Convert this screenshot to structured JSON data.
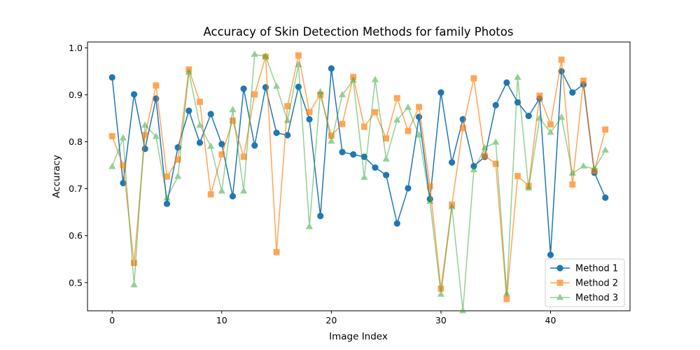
{
  "chart_data": {
    "type": "line",
    "title": "Accuracy of Skin Detection Methods for family Photos",
    "xlabel": "Image Index",
    "ylabel": "Accuracy",
    "xlim": [
      -2.25,
      47.25
    ],
    "ylim": [
      0.44,
      1.0125
    ],
    "xticks": [
      0,
      10,
      20,
      30,
      40
    ],
    "yticks": [
      0.5,
      0.6,
      0.7,
      0.8,
      0.9,
      1.0
    ],
    "ytick_labels": [
      "0.5",
      "0.6",
      "0.7",
      "0.8",
      "0.9",
      "1.0"
    ],
    "grid": false,
    "legend_position": "lower-right",
    "x": [
      0,
      1,
      2,
      3,
      4,
      5,
      6,
      7,
      8,
      9,
      10,
      11,
      12,
      13,
      14,
      15,
      16,
      17,
      18,
      19,
      20,
      21,
      22,
      23,
      24,
      25,
      26,
      27,
      28,
      29,
      30,
      31,
      32,
      33,
      34,
      35,
      36,
      37,
      38,
      39,
      40,
      41,
      42,
      43,
      44,
      45
    ],
    "series": [
      {
        "name": "Method 1",
        "color": "#1f77b4",
        "marker": "circle",
        "opacity": 1.0,
        "values": [
          0.937,
          0.712,
          0.901,
          0.785,
          0.892,
          0.668,
          0.788,
          0.866,
          0.798,
          0.859,
          0.795,
          0.684,
          0.913,
          0.792,
          0.916,
          0.819,
          0.814,
          0.917,
          0.848,
          0.642,
          0.956,
          0.778,
          0.773,
          0.768,
          0.745,
          0.729,
          0.626,
          0.701,
          0.853,
          0.678,
          0.905,
          0.756,
          0.848,
          0.748,
          0.768,
          0.878,
          0.926,
          0.884,
          0.855,
          0.892,
          0.559,
          0.95,
          0.905,
          0.922,
          0.734,
          0.681
        ]
      },
      {
        "name": "Method 2",
        "color": "#ff7f0e",
        "marker": "square",
        "opacity": 0.7,
        "values": [
          0.812,
          0.75,
          0.542,
          0.814,
          0.92,
          0.726,
          0.762,
          0.954,
          0.885,
          0.688,
          0.773,
          0.845,
          0.768,
          0.901,
          0.981,
          0.565,
          0.876,
          0.984,
          0.863,
          0.9,
          0.813,
          0.838,
          0.938,
          0.832,
          0.863,
          0.807,
          0.893,
          0.823,
          0.874,
          0.705,
          0.487,
          0.666,
          0.829,
          0.935,
          0.77,
          0.753,
          0.465,
          0.727,
          0.706,
          0.898,
          0.837,
          0.975,
          0.709,
          0.93,
          0.738,
          0.826
        ]
      },
      {
        "name": "Method 3",
        "color": "#2ca02c",
        "marker": "triangle",
        "opacity": 0.5,
        "values": [
          0.747,
          0.808,
          0.495,
          0.835,
          0.811,
          0.68,
          0.726,
          0.948,
          0.835,
          0.79,
          0.695,
          0.868,
          0.695,
          0.986,
          0.982,
          0.918,
          0.845,
          0.964,
          0.619,
          0.906,
          0.801,
          0.9,
          0.931,
          0.724,
          0.932,
          0.763,
          0.846,
          0.873,
          0.814,
          0.673,
          0.475,
          0.661,
          0.44,
          0.74,
          0.787,
          0.799,
          0.476,
          0.937,
          0.701,
          0.85,
          0.82,
          0.852,
          0.733,
          0.748,
          0.742,
          0.782
        ]
      }
    ]
  }
}
